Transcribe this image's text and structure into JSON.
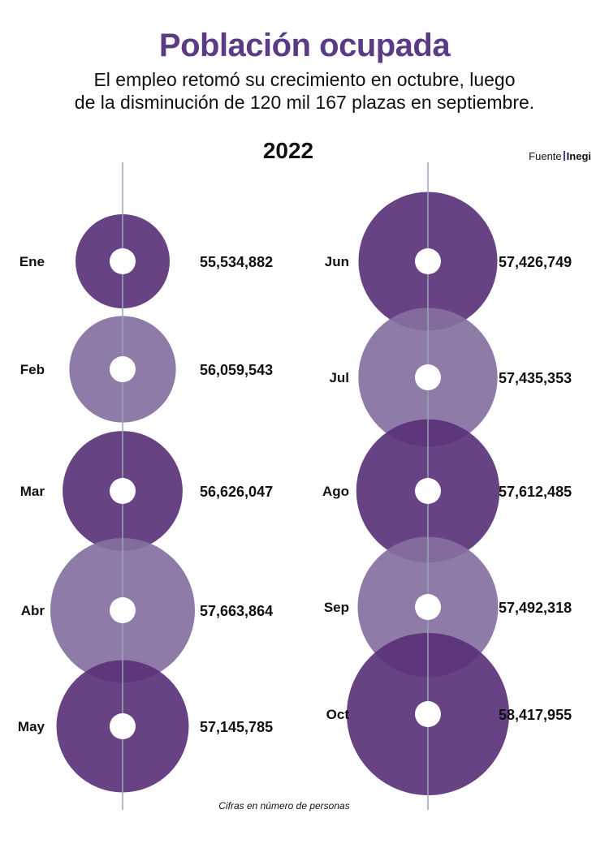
{
  "title": "Población ocupada",
  "subtitle_line1": "El empleo retomó su crecimiento en octubre, luego",
  "subtitle_line2": "de la disminución de 120 mil 167 plazas en septiembre.",
  "year": "2022",
  "source_label": "Fuente",
  "source_name": "Inegi",
  "footnote": "Cifras en número de personas",
  "colors": {
    "dark": "#582f77",
    "light": "#86709f",
    "axis": "#9aa3b8",
    "title": "#5b3a86"
  },
  "chart_data": {
    "type": "bubble",
    "title": "Población ocupada",
    "subtitle": "El empleo retomó su crecimiento en octubre, luego de la disminución de 120 mil 167 plazas en septiembre.",
    "year": "2022",
    "unit": "Cifras en número de personas",
    "columns": [
      {
        "points": [
          {
            "month": "Ene",
            "value": 55534882,
            "label": "55,534,882",
            "shade": "dark"
          },
          {
            "month": "Feb",
            "value": 56059543,
            "label": "56,059,543",
            "shade": "light"
          },
          {
            "month": "Mar",
            "value": 56626047,
            "label": "56,626,047",
            "shade": "dark"
          },
          {
            "month": "Abr",
            "value": 57663864,
            "label": "57,663,864",
            "shade": "light"
          },
          {
            "month": "May",
            "value": 57145785,
            "label": "57,145,785",
            "shade": "dark"
          }
        ]
      },
      {
        "points": [
          {
            "month": "Jun",
            "value": 57426749,
            "label": "57,426,749",
            "shade": "dark"
          },
          {
            "month": "Jul",
            "value": 57435353,
            "label": "57,435,353",
            "shade": "light"
          },
          {
            "month": "Ago",
            "value": 57612485,
            "label": "57,612,485",
            "shade": "dark"
          },
          {
            "month": "Sep",
            "value": 57492318,
            "label": "57,492,318",
            "shade": "light"
          },
          {
            "month": "Oct",
            "value": 58417955,
            "label": "58,417,955",
            "shade": "dark"
          }
        ]
      }
    ]
  }
}
